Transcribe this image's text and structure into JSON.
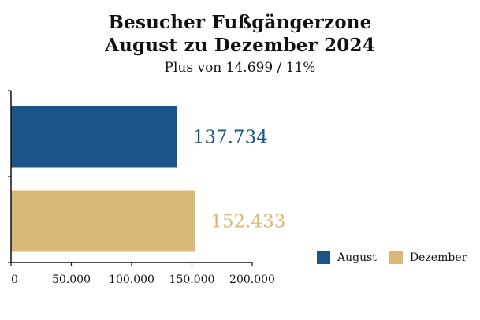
{
  "chart_data": {
    "type": "bar",
    "orientation": "horizontal",
    "title_lines": [
      "Besucher Fußgängerzone",
      "August zu Dezember 2024"
    ],
    "subtitle": "Plus von 14.699 / 11%",
    "categories": [
      "August",
      "Dezember"
    ],
    "values": [
      137734,
      152433
    ],
    "value_labels": [
      "137.734",
      "152.433"
    ],
    "colors": [
      "#1a5488",
      "#d9b877"
    ],
    "xlim": [
      0,
      200000
    ],
    "xticks": [
      0,
      50000,
      100000,
      150000,
      200000
    ],
    "xtick_labels": [
      "0",
      "50.000",
      "100.000",
      "150.000",
      "200.000"
    ],
    "grid": false,
    "legend_position": "bottom-right",
    "legend": [
      {
        "label": "August",
        "color": "#1a5488"
      },
      {
        "label": "Dezember",
        "color": "#d9b877"
      }
    ]
  }
}
